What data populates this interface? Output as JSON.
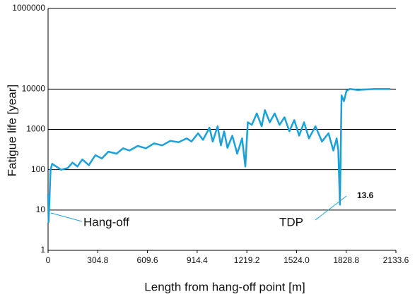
{
  "chart_data": {
    "type": "line",
    "x_label": "Length from hang-off point [m]",
    "y_label": "Fatigue life [year]",
    "log_y": true,
    "grid": true,
    "xlim": [
      0,
      2133.6
    ],
    "xticks": [
      0,
      304.8,
      609.6,
      914.4,
      1219.2,
      {
        "value": 1524,
        "label": "1524.0"
      },
      1828.8,
      2133.6
    ],
    "ylim": [
      1,
      1000000
    ],
    "yticks": [
      1,
      10,
      100,
      1000,
      10000,
      1000000
    ],
    "series": [
      {
        "name": "Fatigue life",
        "color": "#1ba1d9",
        "x": [
          0,
          3,
          8,
          15,
          25,
          50,
          80,
          120,
          150,
          180,
          210,
          250,
          290,
          330,
          370,
          420,
          460,
          500,
          550,
          600,
          650,
          700,
          750,
          800,
          850,
          880,
          920,
          950,
          990,
          1010,
          1040,
          1060,
          1080,
          1100,
          1130,
          1160,
          1190,
          1210,
          1225,
          1250,
          1280,
          1310,
          1330,
          1360,
          1390,
          1420,
          1450,
          1480,
          1510,
          1540,
          1570,
          1600,
          1640,
          1680,
          1720,
          1750,
          1770,
          1780,
          1790,
          1800,
          1815,
          1830,
          1850,
          1900,
          2000,
          2100
        ],
        "values": [
          25,
          5,
          15,
          100,
          140,
          120,
          100,
          110,
          150,
          120,
          180,
          130,
          230,
          190,
          280,
          250,
          340,
          300,
          390,
          340,
          450,
          400,
          520,
          480,
          600,
          500,
          800,
          550,
          1100,
          500,
          1200,
          400,
          900,
          350,
          700,
          250,
          600,
          120,
          1500,
          1300,
          2500,
          1200,
          3000,
          1500,
          2500,
          1300,
          2000,
          900,
          1700,
          700,
          1500,
          600,
          1200,
          500,
          800,
          300,
          600,
          300,
          13.6,
          7000,
          5000,
          9000,
          10000,
          9500,
          10000,
          10000
        ]
      }
    ],
    "annotations": [
      {
        "text": "Hang-off"
      },
      {
        "text": "TDP"
      },
      {
        "text": "13.6"
      }
    ]
  }
}
